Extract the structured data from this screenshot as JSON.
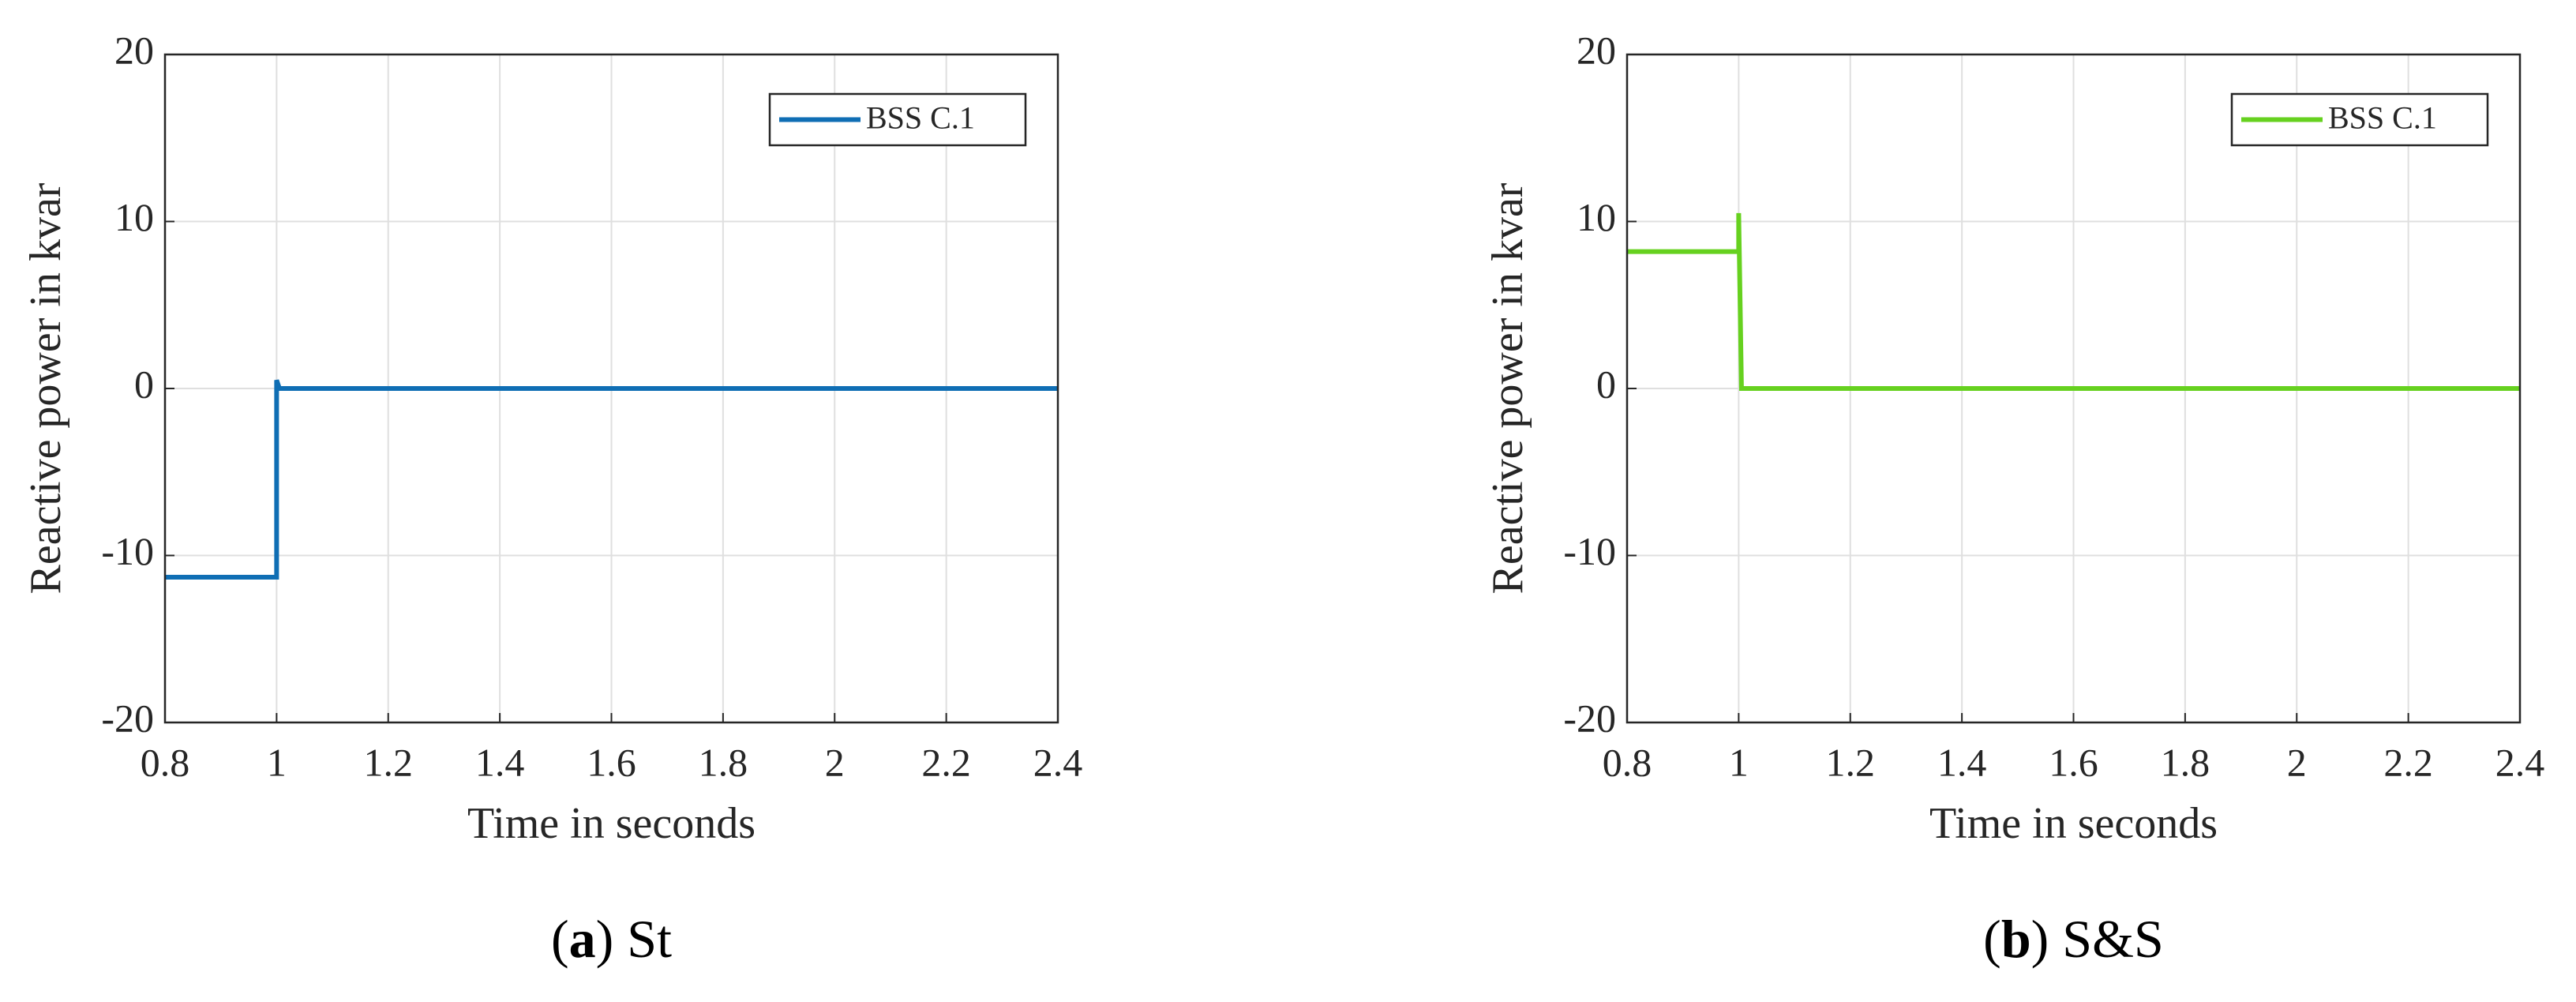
{
  "chart_data": [
    {
      "type": "line",
      "xlabel": "Time in seconds",
      "ylabel": "Reactive power in kvar",
      "caption": [
        "(",
        "a",
        ") St"
      ],
      "x": [
        0.8,
        1.0,
        1.0,
        1.005,
        2.4
      ],
      "series": [
        {
          "name": "BSS C.1",
          "color": "#0f6eb4",
          "values": [
            -11.3,
            -11.3,
            0.5,
            0,
            0
          ]
        }
      ],
      "xlim": [
        0.8,
        2.4
      ],
      "xticks": [
        0.8,
        1,
        1.2,
        1.4,
        1.6,
        1.8,
        2,
        2.2,
        2.4
      ],
      "ylim": [
        -20,
        20
      ],
      "yticks": [
        -20,
        -10,
        0,
        10,
        20
      ],
      "grid": true,
      "legend": "upper right"
    },
    {
      "type": "line",
      "xlabel": "Time in seconds",
      "ylabel": "Reactive power in kvar",
      "caption": [
        "(",
        "b",
        ") S&S"
      ],
      "x": [
        0.8,
        1.0,
        1.0,
        1.005,
        2.4
      ],
      "series": [
        {
          "name": "BSS C.1",
          "color": "#66d11f",
          "values": [
            8.2,
            8.2,
            10.5,
            0,
            0
          ]
        }
      ],
      "xlim": [
        0.8,
        2.4
      ],
      "xticks": [
        0.8,
        1,
        1.2,
        1.4,
        1.6,
        1.8,
        2,
        2.2,
        2.4
      ],
      "ylim": [
        -20,
        20
      ],
      "yticks": [
        -20,
        -10,
        0,
        10,
        20
      ],
      "grid": true,
      "legend": "upper right"
    }
  ]
}
